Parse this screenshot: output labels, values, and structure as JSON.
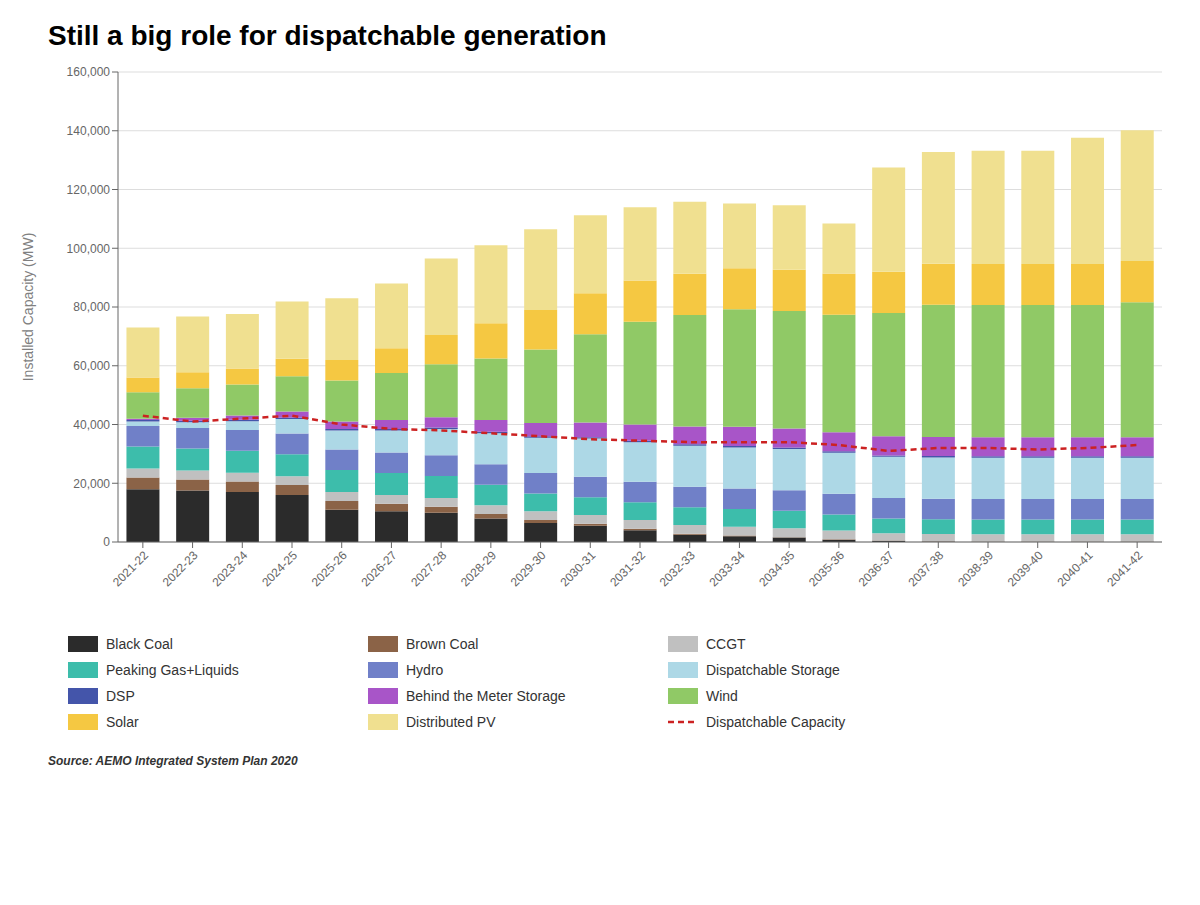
{
  "chart_data": {
    "type": "bar",
    "title": "Still a big role for dispatchable generation",
    "ylabel": "Installed Capacity (MW)",
    "source": "Source: AEMO Integrated System Plan 2020",
    "stacked": true,
    "grid": true,
    "legend": "bottom",
    "categories": [
      "2021-22",
      "2022-23",
      "2023-24",
      "2024-25",
      "2025-26",
      "2026-27",
      "2027-28",
      "2028-29",
      "2029-30",
      "2030-31",
      "2031-32",
      "2032-33",
      "2033-34",
      "2034-35",
      "2035-36",
      "2036-37",
      "2037-38",
      "2038-39",
      "2039-40",
      "2040-41",
      "2041-42"
    ],
    "ylim": [
      0,
      160000
    ],
    "yticks": [
      0,
      {
        "value": 20000,
        "label": "20,000"
      },
      {
        "value": 40000,
        "label": "40,000"
      },
      {
        "value": 60000,
        "label": "60,000"
      },
      {
        "value": 80000,
        "label": "80,000"
      },
      {
        "value": 100000,
        "label": "100,000"
      },
      {
        "value": 120000,
        "label": "120,000"
      },
      {
        "value": 140000,
        "label": "140,000"
      },
      {
        "value": 160000,
        "label": "160,000"
      }
    ],
    "series": [
      {
        "name": "Black Coal",
        "type": "bar",
        "color": "#2b2b2b",
        "values": [
          18000,
          17500,
          17000,
          16000,
          11000,
          10500,
          10000,
          8000,
          6500,
          5500,
          4000,
          2500,
          2000,
          1500,
          800,
          400,
          200,
          100,
          100,
          100,
          100
        ]
      },
      {
        "name": "Brown Coal",
        "type": "bar",
        "color": "#8B6347",
        "values": [
          4000,
          3800,
          3600,
          3400,
          3000,
          2500,
          2000,
          1500,
          1000,
          700,
          500,
          300,
          200,
          150,
          100,
          80,
          50,
          50,
          50,
          50,
          50
        ]
      },
      {
        "name": "CCGT",
        "type": "bar",
        "color": "#c0c0c0",
        "values": [
          3000,
          3000,
          3000,
          3000,
          3000,
          3000,
          3000,
          3000,
          3000,
          3000,
          3000,
          3000,
          3000,
          3000,
          3000,
          2500,
          2500,
          2500,
          2500,
          2500,
          2500
        ]
      },
      {
        "name": "Peaking Gas+Liquids",
        "type": "bar",
        "color": "#3dbdab",
        "values": [
          7500,
          7500,
          7500,
          7500,
          7500,
          7500,
          7500,
          7000,
          6000,
          6000,
          6000,
          6000,
          6000,
          6000,
          5500,
          5000,
          5000,
          5000,
          5000,
          5000,
          5000
        ]
      },
      {
        "name": "Hydro",
        "type": "bar",
        "color": "#7080c8",
        "values": [
          7000,
          7000,
          7000,
          7000,
          7000,
          7000,
          7000,
          7000,
          7000,
          7000,
          7000,
          7000,
          7000,
          7000,
          7000,
          7000,
          7000,
          7000,
          7000,
          7000,
          7000
        ]
      },
      {
        "name": "Dispatchable Storage",
        "type": "bar",
        "color": "#add8e6",
        "values": [
          1500,
          2000,
          3000,
          5000,
          6500,
          7500,
          9000,
          10500,
          12000,
          13000,
          13500,
          14000,
          14000,
          14000,
          14000,
          14000,
          14000,
          14000,
          14000,
          14000,
          14000
        ]
      },
      {
        "name": "DSP",
        "type": "bar",
        "color": "#4455aa",
        "values": [
          500,
          500,
          500,
          500,
          500,
          500,
          500,
          500,
          500,
          500,
          500,
          500,
          500,
          500,
          500,
          500,
          500,
          500,
          500,
          500,
          500
        ]
      },
      {
        "name": "Behind the Meter Storage",
        "type": "bar",
        "color": "#a855c8",
        "values": [
          500,
          1000,
          1500,
          2000,
          2500,
          3000,
          3500,
          4000,
          4500,
          5000,
          5500,
          6000,
          6500,
          6500,
          6500,
          6500,
          6500,
          6500,
          6500,
          6500,
          6500
        ]
      },
      {
        "name": "Wind",
        "type": "bar",
        "color": "#90c966",
        "values": [
          9000,
          10000,
          10500,
          12000,
          14000,
          16000,
          18000,
          21000,
          25000,
          30000,
          35000,
          38000,
          40000,
          40000,
          40000,
          42000,
          45000,
          45000,
          45000,
          45000,
          46000
        ]
      },
      {
        "name": "Solar",
        "type": "bar",
        "color": "#f5c842",
        "values": [
          5000,
          5500,
          5500,
          6000,
          7000,
          8500,
          10000,
          12000,
          13500,
          14000,
          14000,
          14000,
          14000,
          14000,
          14000,
          14000,
          14000,
          14000,
          14000,
          14000,
          14000
        ]
      },
      {
        "name": "Distributed PV",
        "type": "bar",
        "color": "#f0e090",
        "values": [
          17000,
          19000,
          18500,
          19500,
          21000,
          22000,
          26000,
          26500,
          27500,
          26500,
          25000,
          24500,
          22000,
          22000,
          17000,
          35500,
          38000,
          38500,
          38500,
          43000,
          44500
        ]
      },
      {
        "name": "Dispatchable Capacity",
        "type": "line",
        "line_style": "dashed",
        "color": "#cc2222",
        "values": [
          43000,
          41000,
          42000,
          43000,
          40000,
          38500,
          38000,
          37000,
          36000,
          35000,
          34500,
          34000,
          34000,
          34000,
          33000,
          31000,
          32000,
          32000,
          31500,
          32000,
          33000
        ]
      }
    ]
  }
}
